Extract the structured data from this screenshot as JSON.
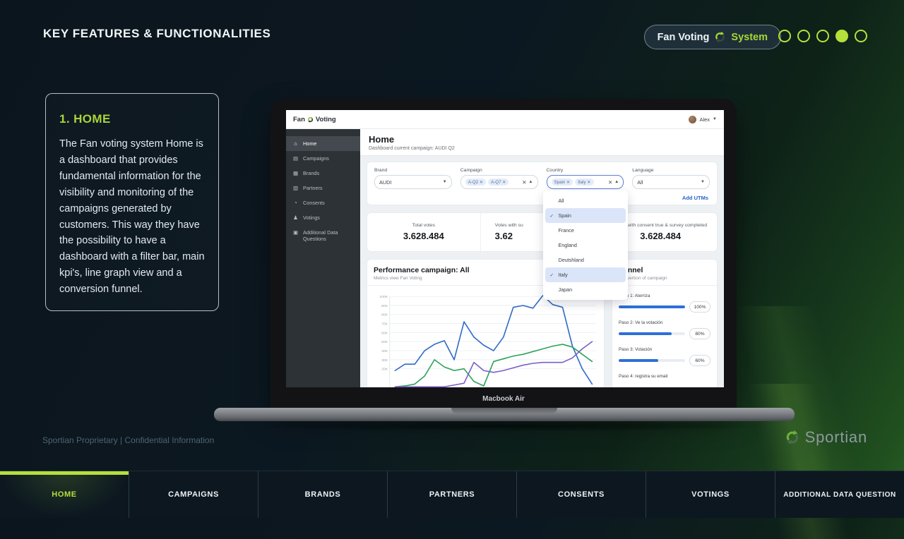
{
  "slide": {
    "title": "KEY FEATURES & FUNCTIONALITIES",
    "badge": {
      "left": "Fan Voting",
      "right": "System"
    },
    "dots": {
      "count": 5,
      "active_index": 3
    },
    "card": {
      "title": "1. HOME",
      "body": "The Fan voting system Home is a dashboard that provides fundamental information for the visibility and monitoring of the campaigns generated by customers. This way they have the possibility to have a dashboard with a filter bar, main kpi's, line graph view and a conversion funnel."
    },
    "footer_left": "Sportian Proprietary | Confidential Information",
    "logo_text": "Sportian",
    "device_label": "Macbook Air",
    "nav": {
      "active_index": 0,
      "items": [
        "HOME",
        "CAMPAIGNS",
        "BRANDS",
        "PARTNERS",
        "CONSENTS",
        "VOTINGS",
        "ADDITIONAL DATA QUESTION"
      ]
    },
    "colors": {
      "accent_green": "#b5e03c",
      "badge_green": "#a6d833"
    }
  },
  "app": {
    "brand": {
      "left": "Fan",
      "right": "Voting"
    },
    "user": {
      "name": "Alex"
    },
    "page": {
      "title": "Home",
      "subtitle": "Dashboard current campaign: AUDI Q2"
    },
    "sidebar": {
      "items": [
        {
          "label": "Home",
          "icon": "home-icon",
          "glyph": "⌂",
          "active": true
        },
        {
          "label": "Campaigns",
          "icon": "campaigns-icon",
          "glyph": "▤",
          "active": false
        },
        {
          "label": "Brands",
          "icon": "brands-icon",
          "glyph": "▦",
          "active": false
        },
        {
          "label": "Partners",
          "icon": "partners-icon",
          "glyph": "▥",
          "active": false
        },
        {
          "label": "Consents",
          "icon": "consents-icon",
          "glyph": "◔",
          "active": false
        },
        {
          "label": "Votings",
          "icon": "votings-icon",
          "glyph": "♟",
          "active": false
        },
        {
          "label": "Additional Data Questions",
          "icon": "additional-data-icon",
          "glyph": "▣",
          "active": false
        }
      ]
    },
    "filters": {
      "brand": {
        "label": "Brand",
        "value": "AUDI"
      },
      "campaign": {
        "label": "Campaign",
        "chips": [
          "A-Q2",
          "A-Q7"
        ]
      },
      "country": {
        "label": "Country",
        "chips": [
          "Spain",
          "Italy"
        ],
        "options": [
          {
            "label": "All",
            "checked": false
          },
          {
            "label": "Spain",
            "checked": true
          },
          {
            "label": "France",
            "checked": false
          },
          {
            "label": "England",
            "checked": false
          },
          {
            "label": "Deutshland",
            "checked": false
          },
          {
            "label": "Italy",
            "checked": true
          },
          {
            "label": "Japan",
            "checked": false
          }
        ]
      },
      "language": {
        "label": "Language",
        "value": "All"
      },
      "add_utms": "Add UTMs"
    },
    "kpis": [
      {
        "label": "Total votes",
        "value": "3.628.484",
        "truncated": false
      },
      {
        "label": "Votes with su",
        "value": "3.62",
        "truncated": true
      },
      {
        "label": "Votes with consent true & survey completed",
        "value": "3.628.484",
        "truncated": false
      }
    ],
    "funnel": {
      "title": "Funnel",
      "subtitle": "Convertion of campaign",
      "bar_color": "#2e6fd6",
      "steps": [
        {
          "label": "Paso 1: Aterriza",
          "pct": 100,
          "badge": "100%"
        },
        {
          "label": "Paso 2: Ve la votación",
          "pct": 80,
          "badge": "80%"
        },
        {
          "label": "Paso 3: Votación",
          "pct": 60,
          "badge": "60%"
        },
        {
          "label": "Paso 4: registra su email",
          "pct": null,
          "badge": ""
        }
      ]
    }
  },
  "chart_data": {
    "type": "line",
    "title": "Performance campaign: All",
    "subtitle": "Metrics view Fan Voting",
    "x": [
      0,
      1,
      2,
      3,
      4,
      5,
      6,
      7,
      8,
      9,
      10,
      11,
      12,
      13,
      14,
      15,
      16,
      17,
      18,
      19,
      20
    ],
    "x_axis_visible": false,
    "ylabel_unit": "K",
    "yticks": [
      "100K",
      "90K",
      "80K",
      "70K",
      "60K",
      "50K",
      "40K",
      "30K",
      "20K"
    ],
    "ylim": [
      0,
      105
    ],
    "grid": true,
    "legend": "none",
    "series": [
      {
        "name": "Total votes",
        "color": "#2f6bc8",
        "values": [
          18,
          25,
          25,
          40,
          47,
          51,
          30,
          72,
          55,
          46,
          40,
          55,
          88,
          90,
          87,
          101,
          91,
          88,
          45,
          20,
          3
        ]
      },
      {
        "name": "Votes with survey",
        "color": "#2ea35c",
        "values": [
          0,
          1,
          3,
          12,
          30,
          22,
          18,
          20,
          6,
          1,
          28,
          31,
          34,
          36,
          39,
          42,
          45,
          47,
          44,
          36,
          28
        ]
      },
      {
        "name": "Votes with consent",
        "color": "#7a5fc7",
        "values": [
          0,
          0,
          0,
          0,
          0,
          0,
          2,
          4,
          27,
          18,
          16,
          18,
          21,
          24,
          26,
          27,
          27,
          27,
          32,
          42,
          50
        ]
      }
    ]
  }
}
